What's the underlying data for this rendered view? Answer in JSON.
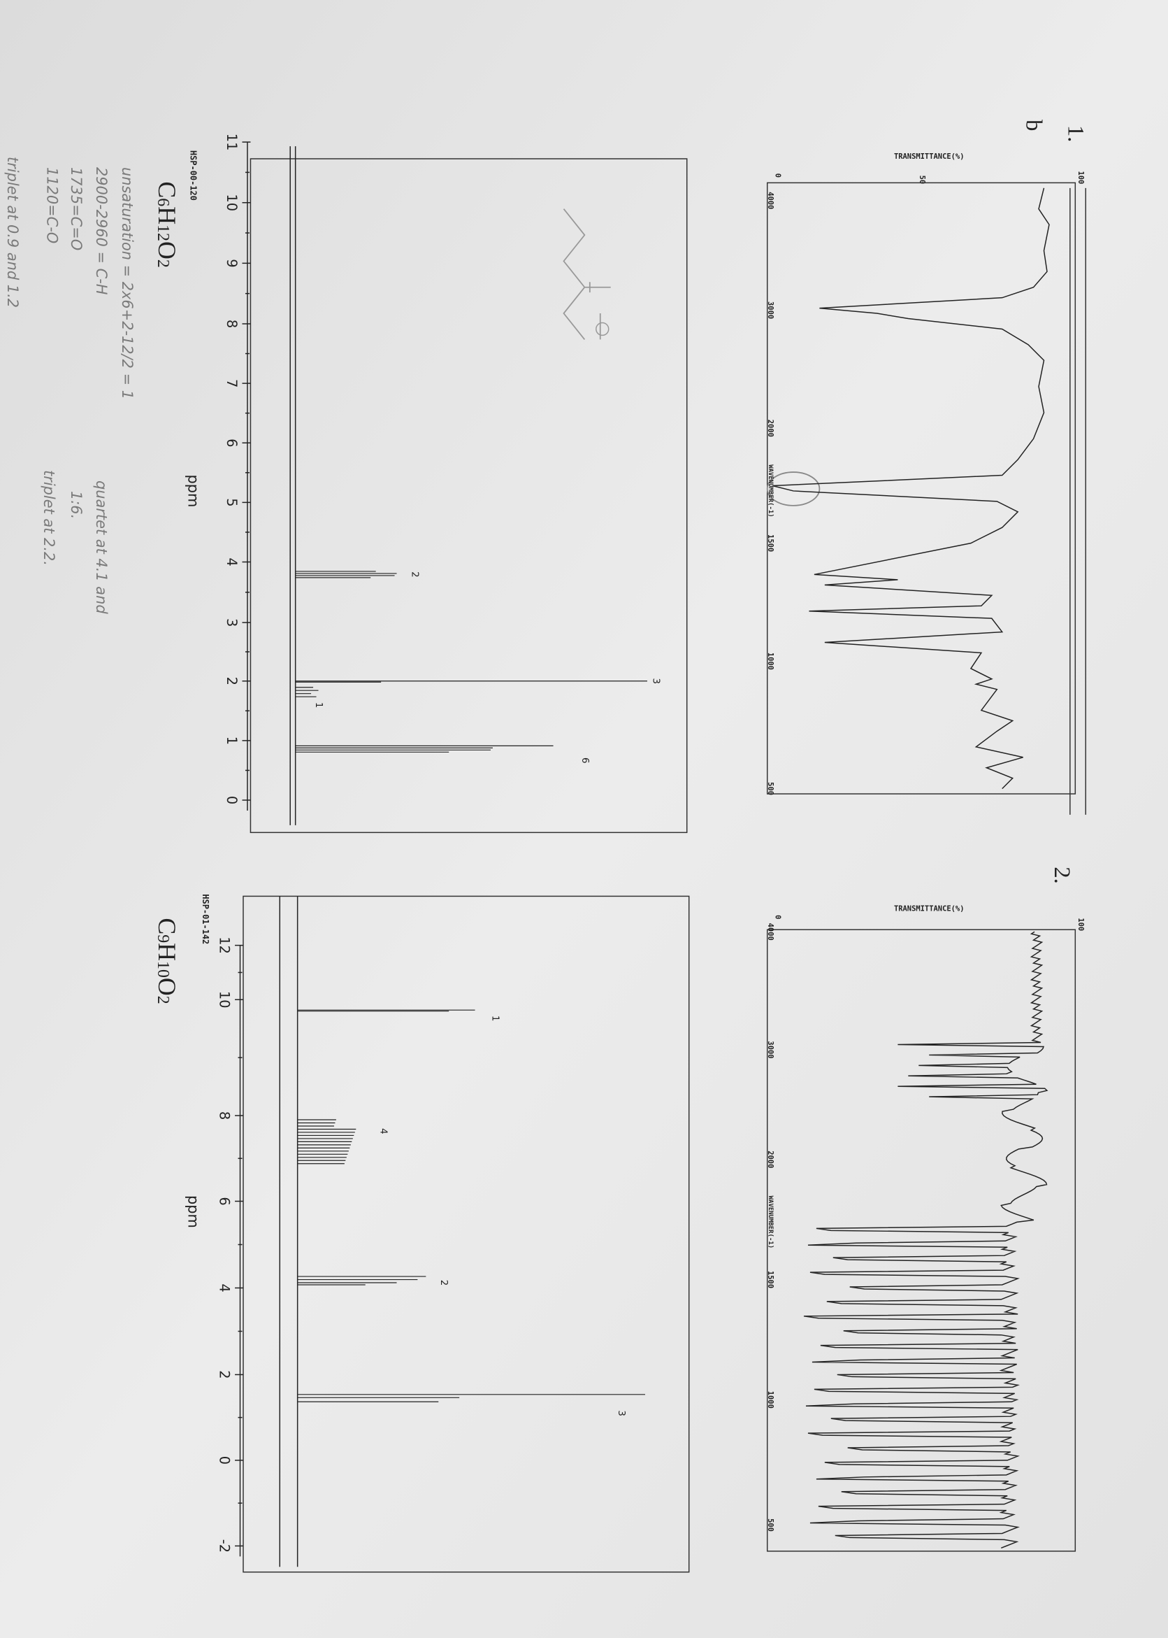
{
  "problem_1": {
    "number": "1.",
    "part": "b"
  },
  "problem_2": {
    "number": "2."
  },
  "ir_1": {
    "y_axis_title": "TRANSMITTANCE(%)",
    "x_axis_title": "WAVENUMBER(-1)",
    "y_ticks": [
      "100",
      "50",
      "0"
    ],
    "x_ticks": [
      "4000",
      "3000",
      "2000",
      "1500",
      "1000",
      "500"
    ]
  },
  "ir_2": {
    "y_axis_title": "TRANSMITTANCE(%)",
    "x_axis_title": "WAVENUMBER(-1)",
    "y_ticks": [
      "100",
      "0"
    ],
    "x_ticks": [
      "4000",
      "3000",
      "2000",
      "1500",
      "1000",
      "500"
    ]
  },
  "nmr_1": {
    "code": "HSP-00-120",
    "axis_label": "ppm",
    "ticks": [
      "11",
      "10",
      "9",
      "8",
      "7",
      "6",
      "5",
      "4",
      "3",
      "2",
      "1",
      "0"
    ],
    "peak_labels": [
      "2",
      "3",
      "1",
      "6"
    ],
    "formula": [
      "C",
      "6",
      "H",
      "12",
      "O",
      "2"
    ]
  },
  "nmr_2": {
    "code": "HSP-01-142",
    "axis_label": "ppm",
    "ticks": [
      "12",
      "10",
      "8",
      "6",
      "4",
      "2",
      "0",
      "-2"
    ],
    "peak_labels": [
      "1",
      "4",
      "2",
      "3"
    ],
    "formula": [
      "C",
      "9",
      "H",
      "10",
      "O",
      "2"
    ]
  },
  "notes": {
    "lines": [
      "unsaturation = 2x6+2-12/2 = 1",
      "2900-2960 = C-H",
      "1735=C=O",
      "1120=C-O",
      "quartet at 4.1 and",
      "1:6.",
      "triplet at 2.2.",
      "triplet at 0.9 and 1.2"
    ]
  }
}
